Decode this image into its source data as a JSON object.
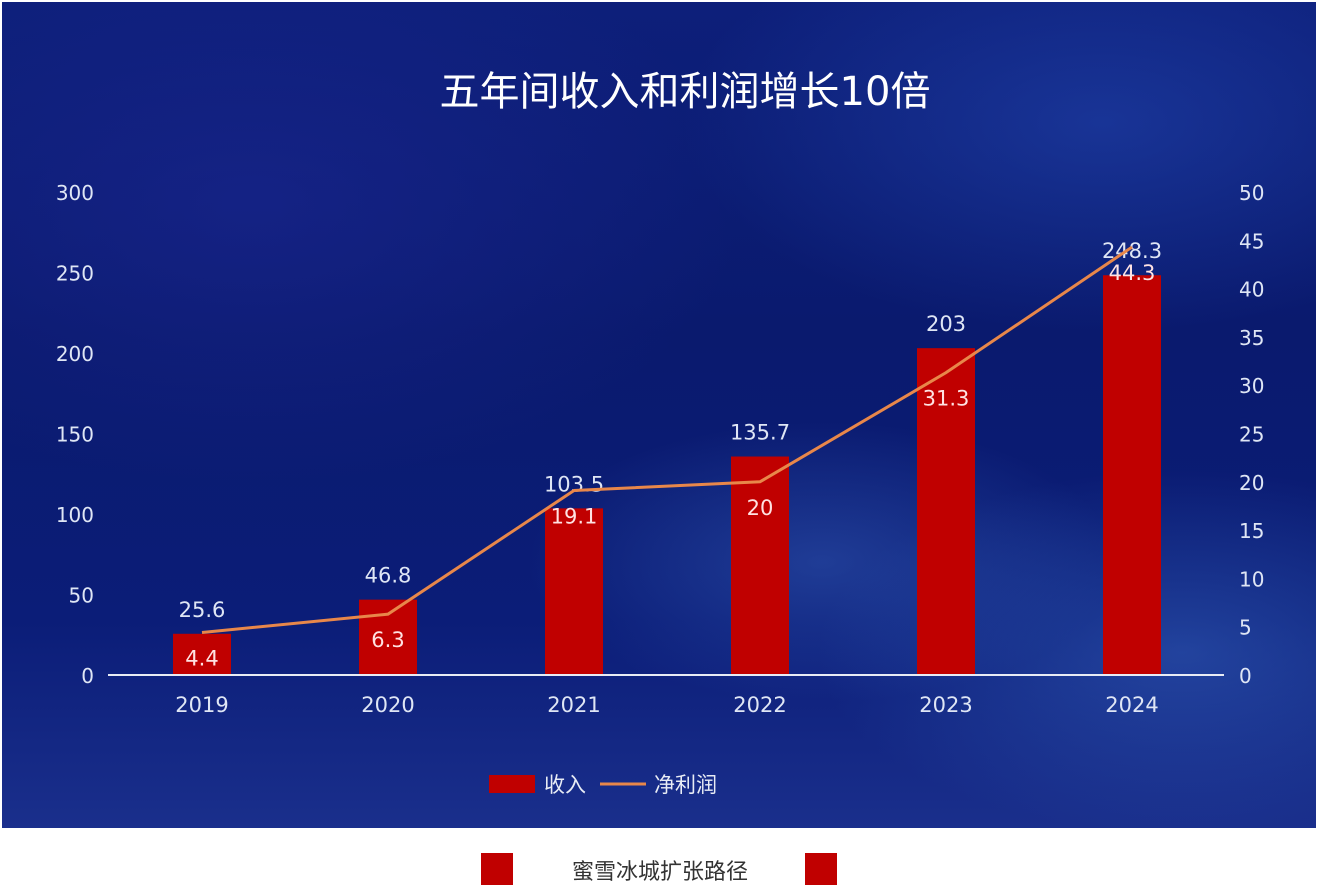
{
  "chart_data": {
    "type": "bar",
    "title": "五年间收入和利润增长10倍",
    "categories": [
      "2019",
      "2020",
      "2021",
      "2022",
      "2023",
      "2024"
    ],
    "series": [
      {
        "name": "收入",
        "type": "bar",
        "axis": "left",
        "values": [
          25.6,
          46.8,
          103.5,
          135.7,
          203,
          248.3
        ]
      },
      {
        "name": "净利润",
        "type": "line",
        "axis": "right",
        "values": [
          4.4,
          6.3,
          19.1,
          20,
          31.3,
          44.3
        ]
      }
    ],
    "y_left": {
      "min": 0,
      "max": 300,
      "ticks": [
        "0",
        "50",
        "100",
        "150",
        "200",
        "250",
        "300"
      ]
    },
    "y_right": {
      "min": 0,
      "max": 50,
      "ticks": [
        "0",
        "5",
        "10",
        "15",
        "20",
        "25",
        "30",
        "35",
        "40",
        "45",
        "50"
      ]
    },
    "legend_position": "bottom-center",
    "grid": false,
    "colors": {
      "bar": "#c00000",
      "line": "#e8874a",
      "text": "#dfe6f5",
      "axis": "#e8ecf5"
    }
  },
  "caption": {
    "text": "蜜雪冰城扩张路径",
    "square_color": "#c00000"
  }
}
